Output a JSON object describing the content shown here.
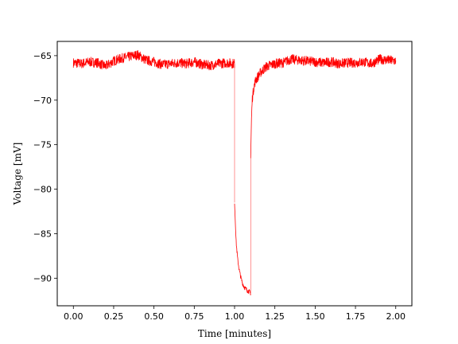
{
  "chart_data": {
    "type": "line",
    "xlabel": "Time [minutes]",
    "ylabel": "Voltage [mV]",
    "xlim": [
      -0.1,
      2.1
    ],
    "ylim": [
      -93.1,
      -63.4
    ],
    "xticks": [
      0.0,
      0.25,
      0.5,
      0.75,
      1.0,
      1.25,
      1.5,
      1.75,
      2.0
    ],
    "xtick_labels": [
      "0.00",
      "0.25",
      "0.50",
      "0.75",
      "1.00",
      "1.25",
      "1.50",
      "1.75",
      "2.00"
    ],
    "yticks": [
      -90,
      -85,
      -80,
      -75,
      -70,
      -65
    ],
    "ytick_labels": [
      "−90",
      "−85",
      "−80",
      "−75",
      "−70",
      "−65"
    ],
    "grid": false,
    "legend": "none",
    "series": [
      {
        "color": "#ff0000",
        "x": [
          0.0,
          0.05,
          0.1,
          0.15,
          0.2,
          0.25,
          0.3,
          0.35,
          0.4,
          0.45,
          0.5,
          0.55,
          0.6,
          0.65,
          0.7,
          0.75,
          0.8,
          0.85,
          0.9,
          0.95,
          1.0,
          1.0,
          1.01,
          1.02,
          1.03,
          1.04,
          1.05,
          1.06,
          1.07,
          1.08,
          1.09,
          1.1,
          1.1,
          1.105,
          1.11,
          1.12,
          1.13,
          1.15,
          1.17,
          1.2,
          1.25,
          1.3,
          1.35,
          1.4,
          1.45,
          1.5,
          1.55,
          1.6,
          1.65,
          1.7,
          1.75,
          1.8,
          1.85,
          1.9,
          1.95,
          2.0
        ],
        "y": [
          -65.8,
          -65.9,
          -65.7,
          -65.8,
          -66.2,
          -65.6,
          -65.3,
          -65.1,
          -64.9,
          -65.5,
          -65.7,
          -66.0,
          -65.9,
          -65.8,
          -65.9,
          -65.7,
          -66.0,
          -66.1,
          -65.9,
          -65.8,
          -65.9,
          -81.5,
          -86.0,
          -88.0,
          -89.2,
          -90.0,
          -90.6,
          -91.0,
          -91.2,
          -91.4,
          -91.5,
          -91.7,
          -76.5,
          -72.0,
          -69.8,
          -68.5,
          -67.8,
          -67.2,
          -66.7,
          -66.2,
          -65.9,
          -65.8,
          -65.4,
          -65.5,
          -65.6,
          -65.7,
          -65.8,
          -65.7,
          -65.9,
          -65.8,
          -65.8,
          -65.7,
          -65.9,
          -65.4,
          -65.5,
          -65.6
        ]
      }
    ]
  }
}
